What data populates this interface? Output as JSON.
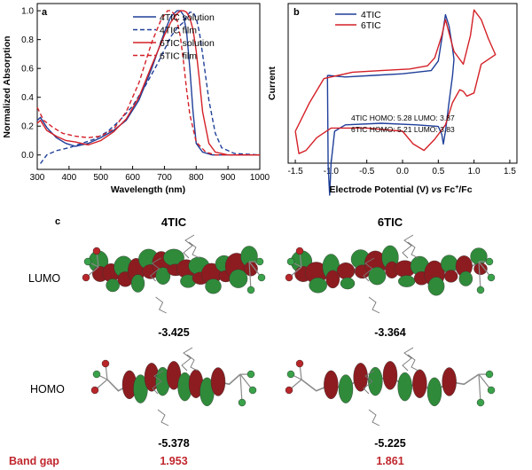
{
  "panel_a": {
    "label": "a",
    "chart_data": {
      "type": "line",
      "xlabel": "Wavelength (nm)",
      "ylabel": "Normalized Absorption",
      "xlim": [
        300,
        1000
      ],
      "ylim": [
        -0.1,
        1.05
      ],
      "xticks": [
        300,
        400,
        500,
        600,
        700,
        800,
        900,
        1000
      ],
      "yticks": [
        0.0,
        0.2,
        0.4,
        0.6,
        0.8,
        1.0
      ],
      "legend_position": "top-right",
      "series": [
        {
          "name": "4TIC solution",
          "color": "#1f3f99",
          "dash": false,
          "x": [
            300,
            310,
            330,
            360,
            390,
            420,
            460,
            500,
            540,
            580,
            620,
            660,
            700,
            720,
            740,
            750,
            760,
            770,
            780,
            790,
            800,
            820,
            850,
            900,
            1000
          ],
          "y": [
            0.24,
            0.26,
            0.19,
            0.12,
            0.08,
            0.06,
            0.08,
            0.12,
            0.17,
            0.24,
            0.38,
            0.6,
            0.85,
            0.96,
            1.0,
            1.0,
            0.97,
            0.85,
            0.6,
            0.3,
            0.08,
            0.02,
            0.0,
            0.0,
            0.0
          ]
        },
        {
          "name": "4TIC film",
          "color": "#1f3f99",
          "dash": true,
          "x": [
            310,
            330,
            360,
            400,
            440,
            480,
            520,
            560,
            600,
            640,
            680,
            720,
            740,
            760,
            770,
            780,
            790,
            800,
            810,
            820,
            840,
            860,
            880,
            920,
            1000
          ],
          "y": [
            -0.06,
            0.0,
            0.03,
            0.05,
            0.08,
            0.11,
            0.16,
            0.24,
            0.34,
            0.48,
            0.64,
            0.82,
            0.88,
            0.92,
            0.96,
            0.99,
            0.99,
            0.95,
            0.85,
            0.7,
            0.38,
            0.15,
            0.05,
            0.01,
            0.0
          ]
        },
        {
          "name": "6TIC solution",
          "color": "#d42027",
          "dash": false,
          "x": [
            300,
            310,
            330,
            360,
            390,
            420,
            460,
            500,
            540,
            580,
            620,
            660,
            700,
            720,
            740,
            750,
            760,
            770,
            780,
            790,
            800,
            810,
            820,
            840,
            860,
            900,
            1000
          ],
          "y": [
            0.22,
            0.24,
            0.17,
            0.13,
            0.1,
            0.09,
            0.07,
            0.1,
            0.16,
            0.25,
            0.4,
            0.62,
            0.83,
            0.92,
            0.98,
            1.0,
            1.0,
            0.99,
            0.95,
            0.87,
            0.72,
            0.52,
            0.3,
            0.08,
            0.02,
            0.0,
            0.0
          ]
        },
        {
          "name": "6TIC film",
          "color": "#d42027",
          "dash": true,
          "x": [
            300,
            320,
            350,
            380,
            420,
            460,
            500,
            540,
            580,
            620,
            660,
            690,
            710,
            720,
            730,
            740,
            750,
            760,
            770,
            780,
            800,
            830,
            860,
            900,
            1000
          ],
          "y": [
            0.33,
            0.24,
            0.19,
            0.15,
            0.13,
            0.12,
            0.13,
            0.18,
            0.3,
            0.5,
            0.78,
            0.94,
            1.0,
            1.0,
            0.98,
            0.93,
            0.82,
            0.65,
            0.45,
            0.28,
            0.09,
            0.02,
            0.0,
            0.0,
            0.0
          ]
        }
      ]
    }
  },
  "panel_b": {
    "label": "b",
    "chart_data": {
      "type": "line",
      "xlabel_prefix": "Electrode Potential (V) ",
      "xlabel_italic": "vs",
      "xlabel_suffix": " Fc",
      "xlabel_sup": "+",
      "xlabel_end": "/Fc",
      "ylabel": "Current",
      "xlim": [
        -1.6,
        1.6
      ],
      "xticks": [
        -1.5,
        -1.0,
        -0.5,
        0.0,
        0.5,
        1.0,
        1.5
      ],
      "xticklabels": [
        "-1.5",
        "-1.0",
        "-0.5",
        "0.0",
        "0.5",
        "1.0",
        "1.5"
      ],
      "legend_position": "top-left",
      "annotations": [
        "4TIC HOMO: 5.28 LUMO: 3.87",
        "6TIC HOMO: 5.21 LUMO: 3.83"
      ],
      "series": [
        {
          "name": "4TIC",
          "color": "#1f3f99",
          "x": [
            -1.05,
            -0.8,
            -0.4,
            0.0,
            0.4,
            0.5,
            0.55,
            0.6,
            0.65,
            0.7,
            0.72,
            0.7,
            0.65,
            0.6,
            0.57,
            0.55,
            0.5,
            0.2,
            -0.3,
            -0.8,
            -0.95,
            -1.0,
            -1.02,
            -1.04,
            -1.05
          ],
          "y": [
            0.55,
            0.54,
            0.55,
            0.56,
            0.58,
            0.64,
            0.78,
            0.93,
            0.86,
            0.72,
            0.65,
            0.55,
            0.38,
            0.2,
            0.12,
            0.18,
            0.23,
            0.24,
            0.25,
            0.24,
            0.2,
            0.0,
            -0.2,
            -0.02,
            0.55
          ]
        },
        {
          "name": "6TIC",
          "color": "#d42027",
          "x": [
            -1.5,
            -1.3,
            -1.1,
            -0.7,
            -0.3,
            0.1,
            0.35,
            0.45,
            0.55,
            0.6,
            0.72,
            0.85,
            0.95,
            1.0,
            1.1,
            1.2,
            1.3,
            1.1,
            1.0,
            0.9,
            0.85,
            0.8,
            0.7,
            0.6,
            0.45,
            0.3,
            0.15,
            0.0,
            -0.5,
            -1.0,
            -1.2,
            -1.35,
            -1.45,
            -1.5
          ],
          "y": [
            0.2,
            0.38,
            0.53,
            0.57,
            0.58,
            0.59,
            0.61,
            0.66,
            0.8,
            0.9,
            0.7,
            0.62,
            0.8,
            0.96,
            0.9,
            0.78,
            0.68,
            0.62,
            0.44,
            0.42,
            0.45,
            0.46,
            0.38,
            0.24,
            0.15,
            0.08,
            0.12,
            0.2,
            0.22,
            0.22,
            0.16,
            0.08,
            0.06,
            0.2
          ]
        }
      ]
    }
  },
  "panel_c": {
    "label": "c",
    "columns": [
      "4TIC",
      "6TIC"
    ],
    "rows": [
      "LUMO",
      "HOMO"
    ],
    "lumo_values": [
      "-3.425",
      "-3.364"
    ],
    "homo_values": [
      "-5.378",
      "-5.225"
    ],
    "band_gap_label": "Band gap",
    "band_gap_values": [
      "1.953",
      "1.861"
    ],
    "colors": {
      "lobe_red": "#8c1c1f",
      "lobe_green": "#2f8a3a",
      "atom_green": "#3aa24a",
      "atom_red": "#b8262a",
      "bond_gray": "#8a8a8a"
    }
  }
}
